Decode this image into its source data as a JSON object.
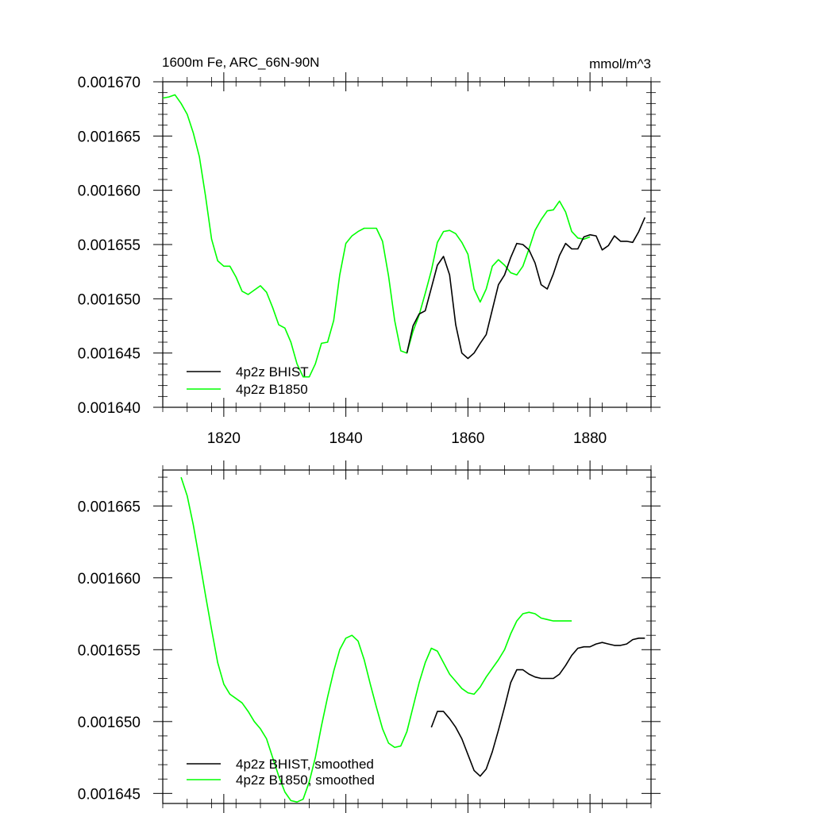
{
  "colors": {
    "bhist": "#000000",
    "b1850": "#00ff00",
    "axis": "#000000"
  },
  "chart_data": [
    {
      "type": "line",
      "title": "1600m Fe, ARC_66N-90N",
      "units": "mmol/m^3",
      "xlabel": "",
      "ylabel": "",
      "xlim": [
        1810,
        1890
      ],
      "ylim": [
        0.00164,
        0.00167
      ],
      "xticks": [
        1820,
        1840,
        1860,
        1880
      ],
      "xtick_labels": [
        "1820",
        "1840",
        "1860",
        "1880"
      ],
      "yticks": [
        0.00164,
        0.001645,
        0.00165,
        0.001655,
        0.00166,
        0.001665,
        0.00167
      ],
      "ytick_labels": [
        "0.001640",
        "0.001645",
        "0.001650",
        "0.001655",
        "0.001660",
        "0.001665",
        "0.001670"
      ],
      "legend_position": "bottom-left",
      "series": [
        {
          "name": "4p2z BHIST",
          "color": "#000000",
          "x": [
            1850,
            1851,
            1852,
            1853,
            1854,
            1855,
            1856,
            1857,
            1858,
            1859,
            1860,
            1861,
            1862,
            1863,
            1864,
            1865,
            1866,
            1867,
            1868,
            1869,
            1870,
            1871,
            1872,
            1873,
            1874,
            1875,
            1876,
            1877,
            1878,
            1879,
            1880,
            1881,
            1882,
            1883,
            1884,
            1885,
            1886,
            1887,
            1888,
            1889
          ],
          "y": [
            0.001645,
            0.0016475,
            0.0016486,
            0.0016489,
            0.001651,
            0.0016531,
            0.0016539,
            0.0016522,
            0.0016476,
            0.001645,
            0.0016445,
            0.001645,
            0.0016459,
            0.0016467,
            0.001649,
            0.0016513,
            0.0016522,
            0.0016538,
            0.0016551,
            0.001655,
            0.0016545,
            0.0016533,
            0.0016513,
            0.0016509,
            0.0016523,
            0.001654,
            0.0016551,
            0.0016546,
            0.0016546,
            0.0016557,
            0.0016559,
            0.0016558,
            0.0016545,
            0.0016549,
            0.0016558,
            0.0016553,
            0.0016553,
            0.0016552,
            0.0016562,
            0.0016575
          ]
        },
        {
          "name": "4p2z B1850",
          "color": "#00ff00",
          "x": [
            1810,
            1811,
            1812,
            1813,
            1814,
            1815,
            1816,
            1817,
            1818,
            1819,
            1820,
            1821,
            1822,
            1823,
            1824,
            1825,
            1826,
            1827,
            1828,
            1829,
            1830,
            1831,
            1832,
            1833,
            1834,
            1835,
            1836,
            1837,
            1838,
            1839,
            1840,
            1841,
            1842,
            1843,
            1844,
            1845,
            1846,
            1847,
            1848,
            1849,
            1850,
            1851,
            1852,
            1853,
            1854,
            1855,
            1856,
            1857,
            1858,
            1859,
            1860,
            1861,
            1862,
            1863,
            1864,
            1865,
            1866,
            1867,
            1868,
            1869,
            1870,
            1871,
            1872,
            1873,
            1874,
            1875,
            1876,
            1877,
            1878,
            1879,
            1880
          ],
          "y": [
            0.0016685,
            0.0016686,
            0.0016688,
            0.001668,
            0.001667,
            0.0016653,
            0.0016631,
            0.0016595,
            0.0016555,
            0.0016535,
            0.001653,
            0.001653,
            0.001652,
            0.0016507,
            0.0016504,
            0.0016508,
            0.0016512,
            0.0016506,
            0.0016492,
            0.0016476,
            0.0016473,
            0.001646,
            0.001644,
            0.0016428,
            0.0016428,
            0.001644,
            0.0016459,
            0.001646,
            0.001648,
            0.0016522,
            0.0016551,
            0.0016558,
            0.0016562,
            0.0016565,
            0.0016565,
            0.0016565,
            0.0016553,
            0.0016521,
            0.001648,
            0.0016452,
            0.001645,
            0.001647,
            0.0016485,
            0.0016505,
            0.0016526,
            0.0016552,
            0.0016562,
            0.0016563,
            0.001656,
            0.0016552,
            0.0016541,
            0.0016509,
            0.0016497,
            0.0016509,
            0.001653,
            0.0016536,
            0.0016531,
            0.0016524,
            0.0016522,
            0.001653,
            0.0016546,
            0.0016563,
            0.0016573,
            0.0016581,
            0.0016582,
            0.001659,
            0.001658,
            0.0016562,
            0.0016556,
            0.0016555,
            0.0016557
          ]
        }
      ]
    },
    {
      "type": "line",
      "title": "",
      "xlabel": "",
      "ylabel": "",
      "xlim": [
        1810,
        1890
      ],
      "ylim": [
        0.0016443,
        0.0016675
      ],
      "xticks": [
        1820,
        1840,
        1860,
        1880
      ],
      "yticks": [
        0.001645,
        0.00165,
        0.001655,
        0.00166,
        0.001665
      ],
      "ytick_labels": [
        "0.001645",
        "0.001650",
        "0.001655",
        "0.001660",
        "0.001665"
      ],
      "legend_position": "bottom-left",
      "series": [
        {
          "name": "4p2z BHIST, smoothed",
          "color": "#000000",
          "x": [
            1854,
            1855,
            1856,
            1857,
            1858,
            1859,
            1860,
            1861,
            1862,
            1863,
            1864,
            1865,
            1866,
            1867,
            1868,
            1869,
            1870,
            1871,
            1872,
            1873,
            1874,
            1875,
            1876,
            1877,
            1878,
            1879,
            1880,
            1881,
            1882,
            1883,
            1884,
            1885,
            1886,
            1887,
            1888,
            1889
          ],
          "y": [
            0.0016496,
            0.0016507,
            0.0016507,
            0.0016502,
            0.0016496,
            0.0016488,
            0.0016477,
            0.0016466,
            0.0016462,
            0.0016467,
            0.0016479,
            0.0016494,
            0.001651,
            0.0016527,
            0.0016536,
            0.0016536,
            0.0016533,
            0.0016531,
            0.001653,
            0.001653,
            0.001653,
            0.0016533,
            0.0016539,
            0.0016546,
            0.0016551,
            0.0016552,
            0.0016552,
            0.0016554,
            0.0016555,
            0.0016554,
            0.0016553,
            0.0016553,
            0.0016554,
            0.0016557,
            0.0016558,
            0.0016558
          ]
        },
        {
          "name": "4p2z B1850, smoothed",
          "color": "#00ff00",
          "x": [
            1813,
            1814,
            1815,
            1816,
            1817,
            1818,
            1819,
            1820,
            1821,
            1822,
            1823,
            1824,
            1825,
            1826,
            1827,
            1828,
            1829,
            1830,
            1831,
            1832,
            1833,
            1834,
            1835,
            1836,
            1837,
            1838,
            1839,
            1840,
            1841,
            1842,
            1843,
            1844,
            1845,
            1846,
            1847,
            1848,
            1849,
            1850,
            1851,
            1852,
            1853,
            1854,
            1855,
            1856,
            1857,
            1858,
            1859,
            1860,
            1861,
            1862,
            1863,
            1864,
            1865,
            1866,
            1867,
            1868,
            1869,
            1870,
            1871,
            1872,
            1873,
            1874,
            1875,
            1876,
            1877
          ],
          "y": [
            0.001667,
            0.0016657,
            0.0016637,
            0.0016613,
            0.0016588,
            0.0016564,
            0.0016541,
            0.0016526,
            0.0016519,
            0.0016516,
            0.0016513,
            0.0016507,
            0.00165,
            0.0016495,
            0.0016488,
            0.0016475,
            0.0016462,
            0.0016451,
            0.0016445,
            0.0016444,
            0.0016446,
            0.0016458,
            0.0016475,
            0.0016497,
            0.0016517,
            0.0016535,
            0.001655,
            0.0016558,
            0.001656,
            0.0016556,
            0.0016543,
            0.0016526,
            0.001651,
            0.0016495,
            0.0016485,
            0.0016482,
            0.0016483,
            0.0016493,
            0.001651,
            0.0016527,
            0.0016541,
            0.0016551,
            0.0016549,
            0.0016541,
            0.0016533,
            0.0016528,
            0.0016523,
            0.001652,
            0.0016519,
            0.0016524,
            0.0016531,
            0.0016537,
            0.0016543,
            0.001655,
            0.0016561,
            0.001657,
            0.0016575,
            0.0016576,
            0.0016575,
            0.0016572,
            0.0016571,
            0.001657,
            0.001657,
            0.001657,
            0.001657
          ]
        }
      ]
    }
  ]
}
